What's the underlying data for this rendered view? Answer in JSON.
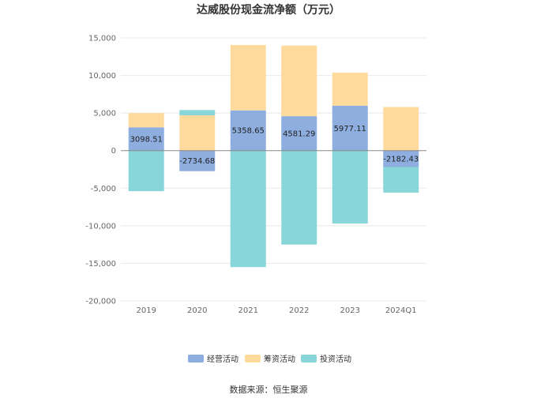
{
  "chart_data": {
    "type": "bar",
    "stacked": true,
    "title": "达威股份现金流净额（万元）",
    "categories": [
      "2019",
      "2020",
      "2021",
      "2022",
      "2023",
      "2024Q1"
    ],
    "series": [
      {
        "name": "经营活动",
        "color": "#8eaee0",
        "values": [
          3098.51,
          -2734.68,
          5358.65,
          4581.29,
          5977.11,
          -2182.43
        ],
        "labels": [
          "3098.51",
          "-2734.68",
          "5358.65",
          "4581.29",
          "5977.11",
          "-2182.43"
        ]
      },
      {
        "name": "筹资活动",
        "color": "#fedb9d",
        "values": [
          1900,
          4700,
          8700,
          9400,
          4400,
          5800
        ]
      },
      {
        "name": "投资活动",
        "color": "#88d6d9",
        "values": [
          -5400,
          700,
          -15500,
          -12500,
          -9700,
          -3400
        ]
      }
    ],
    "ylim": [
      -20000,
      15000
    ],
    "yticks": [
      -20000,
      -15000,
      -10000,
      -5000,
      0,
      5000,
      10000,
      15000
    ],
    "ytick_labels": [
      "-20,000",
      "-15,000",
      "-10,000",
      "-5,000",
      "0",
      "5,000",
      "10,000",
      "15,000"
    ],
    "legend": "bottom-center",
    "grid": true
  },
  "source": "数据来源：恒生聚源",
  "colors": {
    "grid": "#e8e8e8",
    "zero_line": "#888888",
    "axis_text": "#666666"
  }
}
